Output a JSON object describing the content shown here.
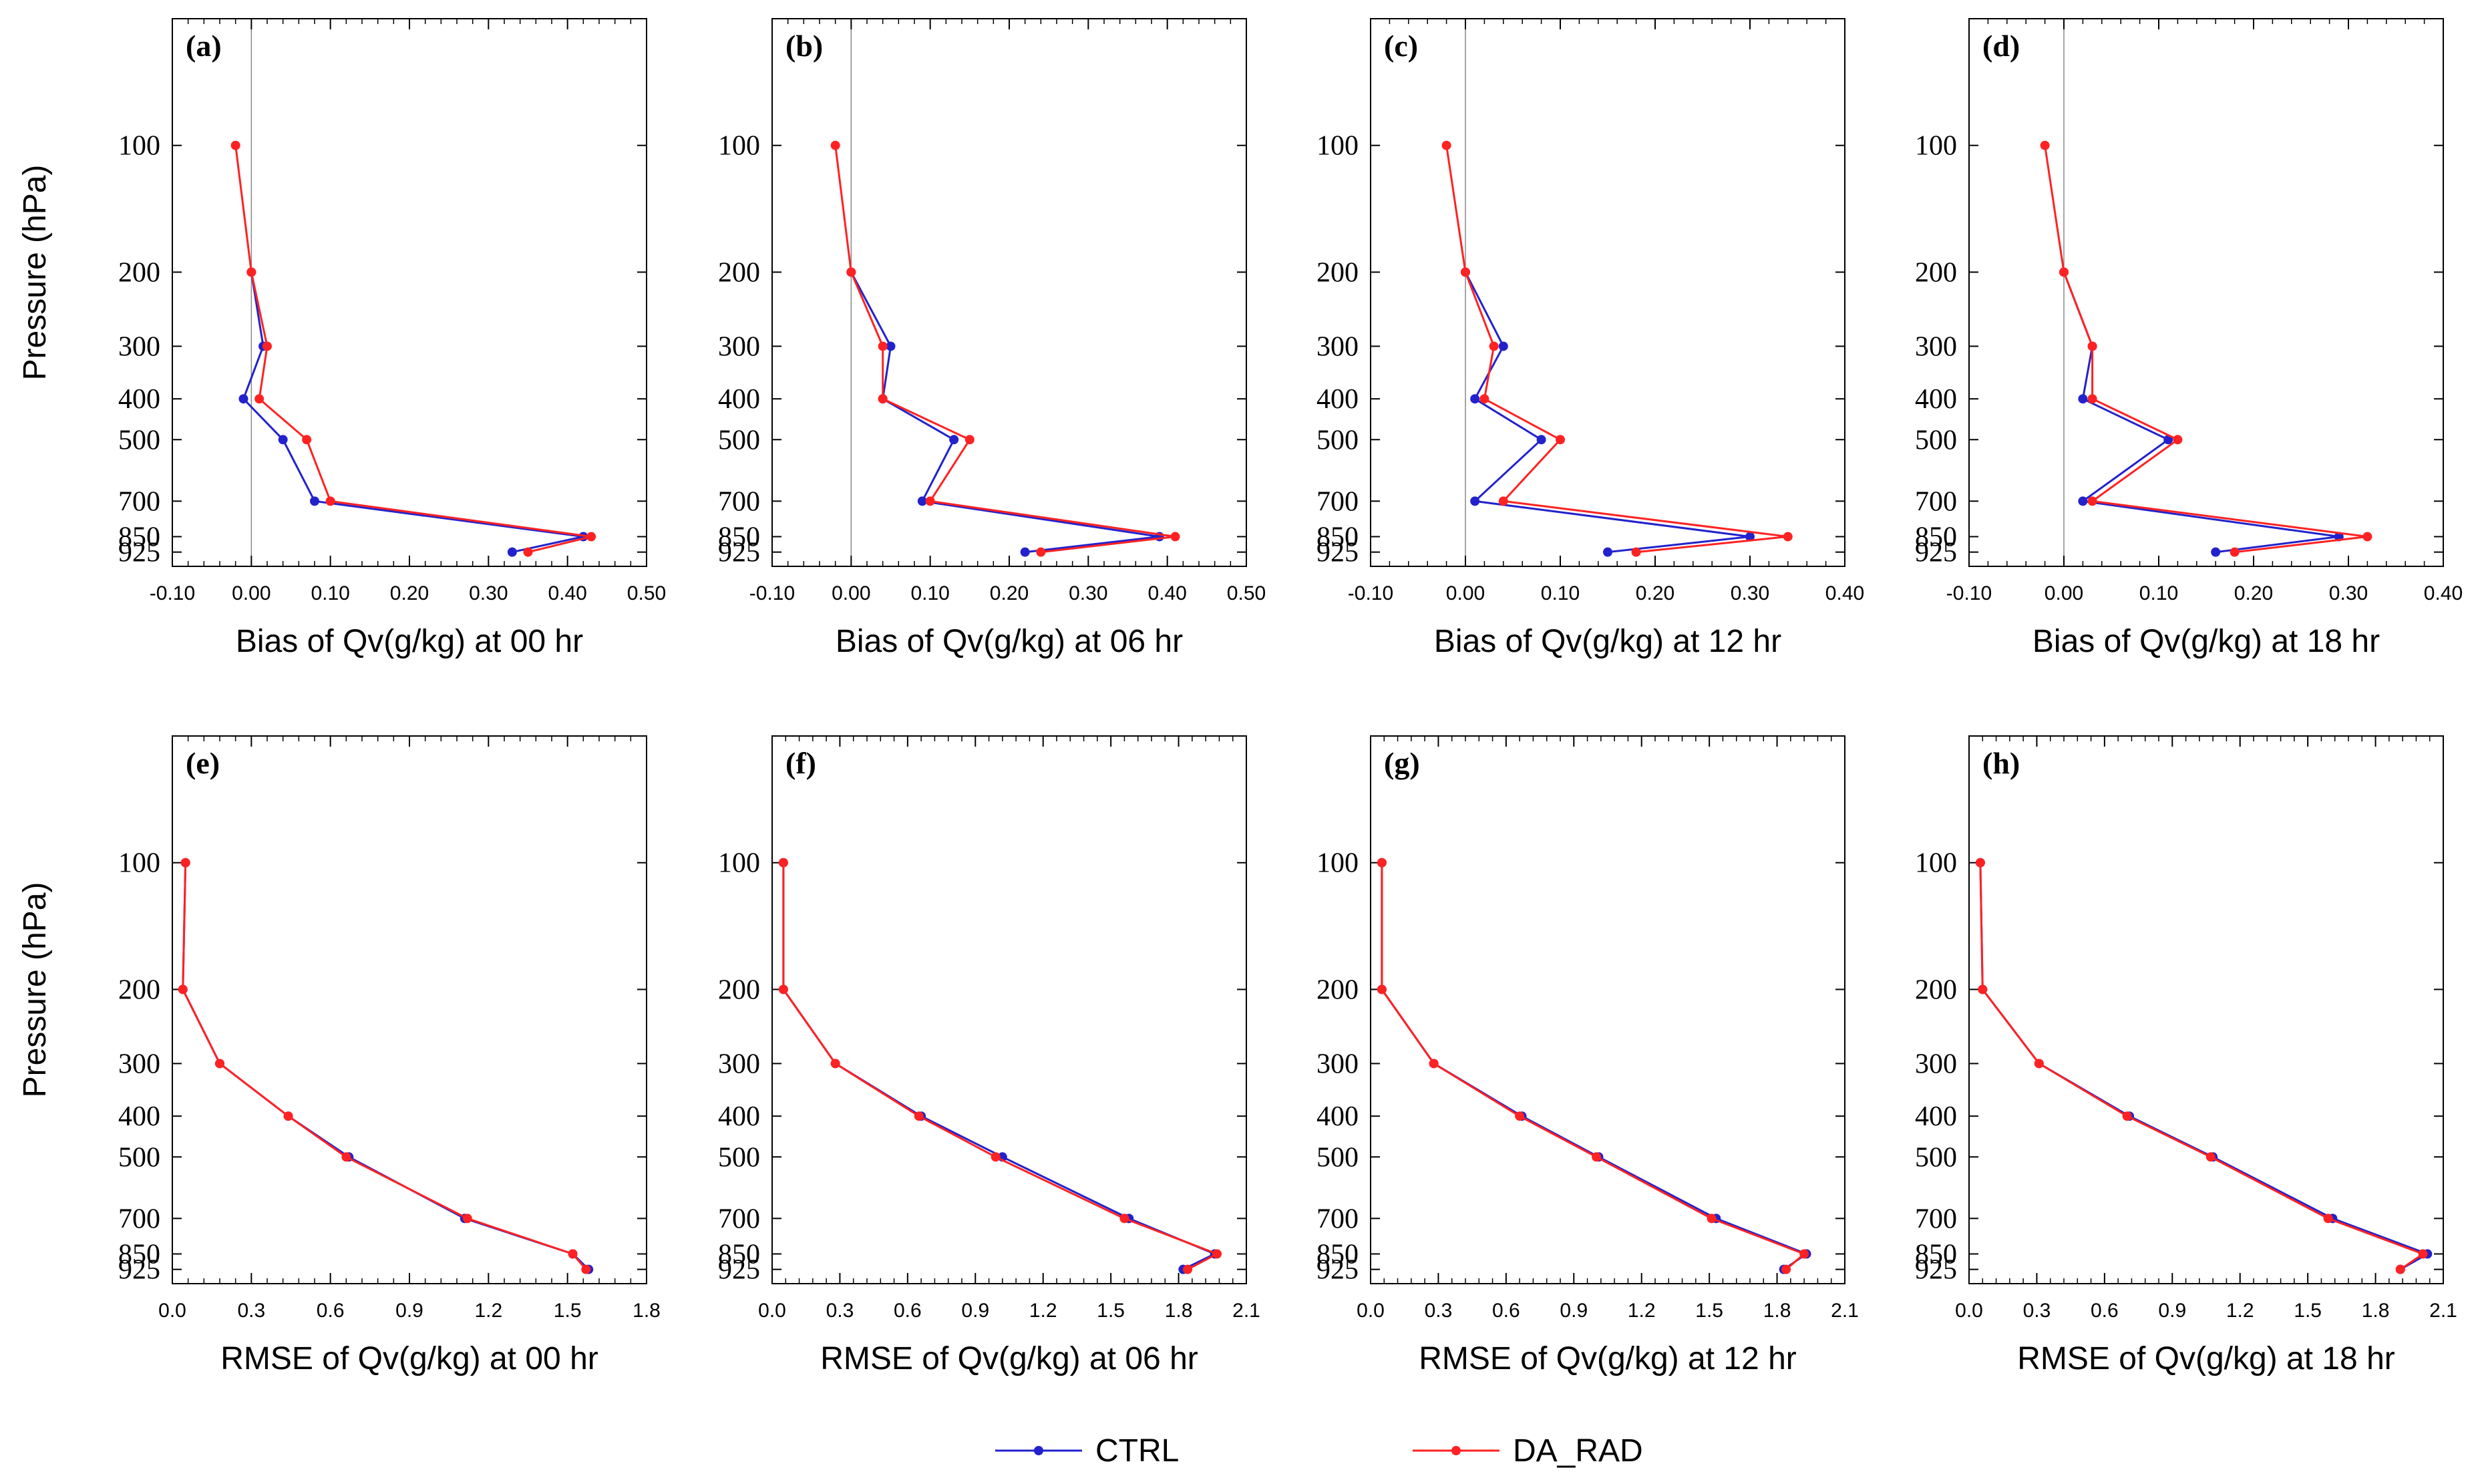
{
  "pressure_levels": [
    100,
    200,
    300,
    400,
    500,
    700,
    850,
    925
  ],
  "legend": [
    {
      "name": "CTRL",
      "color": "#2222cc"
    },
    {
      "name": "DA_RAD",
      "color": "#ff2222"
    }
  ],
  "chart_data": [
    {
      "type": "line",
      "panel_label": "(a)",
      "xlabel": "Bias of Qv(g/kg) at 00 hr",
      "ylabel": "Pressure (hPa)",
      "xlim": [
        -0.1,
        0.5
      ],
      "xticks": [
        -0.1,
        0,
        0.1,
        0.2,
        0.3,
        0.4,
        0.5
      ],
      "xtick_labels": [
        "-0.10",
        "0.00",
        "0.10",
        "0.20",
        "0.30",
        "0.40",
        "0.50"
      ],
      "series": [
        {
          "name": "CTRL",
          "values": [
            null,
            0.0,
            0.015,
            -0.01,
            0.04,
            0.08,
            0.42,
            0.33
          ]
        },
        {
          "name": "DA_RAD",
          "values": [
            -0.02,
            0.0,
            0.02,
            0.01,
            0.07,
            0.1,
            0.43,
            0.35
          ]
        }
      ]
    },
    {
      "type": "line",
      "panel_label": "(b)",
      "xlabel": "Bias of Qv(g/kg) at 06 hr",
      "ylabel": "",
      "xlim": [
        -0.1,
        0.5
      ],
      "xticks": [
        -0.1,
        0,
        0.1,
        0.2,
        0.3,
        0.4,
        0.5
      ],
      "xtick_labels": [
        "-0.10",
        "0.00",
        "0.10",
        "0.20",
        "0.30",
        "0.40",
        "0.50"
      ],
      "series": [
        {
          "name": "CTRL",
          "values": [
            null,
            0.0,
            0.05,
            0.04,
            0.13,
            0.09,
            0.39,
            0.22
          ]
        },
        {
          "name": "DA_RAD",
          "values": [
            -0.02,
            0.0,
            0.04,
            0.04,
            0.15,
            0.1,
            0.41,
            0.24
          ]
        }
      ]
    },
    {
      "type": "line",
      "panel_label": "(c)",
      "xlabel": "Bias of Qv(g/kg) at 12 hr",
      "ylabel": "",
      "xlim": [
        -0.1,
        0.4
      ],
      "xticks": [
        -0.1,
        0,
        0.1,
        0.2,
        0.3,
        0.4
      ],
      "xtick_labels": [
        "-0.10",
        "0.00",
        "0.10",
        "0.20",
        "0.30",
        "0.40"
      ],
      "series": [
        {
          "name": "CTRL",
          "values": [
            null,
            0.0,
            0.04,
            0.01,
            0.08,
            0.01,
            0.3,
            0.15
          ]
        },
        {
          "name": "DA_RAD",
          "values": [
            -0.02,
            0.0,
            0.03,
            0.02,
            0.1,
            0.04,
            0.34,
            0.18
          ]
        }
      ]
    },
    {
      "type": "line",
      "panel_label": "(d)",
      "xlabel": "Bias of Qv(g/kg) at 18 hr",
      "ylabel": "",
      "xlim": [
        -0.1,
        0.4
      ],
      "xticks": [
        -0.1,
        0,
        0.1,
        0.2,
        0.3,
        0.4
      ],
      "xtick_labels": [
        "-0.10",
        "0.00",
        "0.10",
        "0.20",
        "0.30",
        "0.40"
      ],
      "series": [
        {
          "name": "CTRL",
          "values": [
            null,
            0.0,
            0.03,
            0.02,
            0.11,
            0.02,
            0.29,
            0.16
          ]
        },
        {
          "name": "DA_RAD",
          "values": [
            -0.02,
            0.0,
            0.03,
            0.03,
            0.12,
            0.03,
            0.32,
            0.18
          ]
        }
      ]
    },
    {
      "type": "line",
      "panel_label": "(e)",
      "xlabel": "RMSE of Qv(g/kg) at 00 hr",
      "ylabel": "Pressure (hPa)",
      "xlim": [
        0,
        1.8
      ],
      "xticks": [
        0,
        0.3,
        0.6,
        0.9,
        1.2,
        1.5,
        1.8
      ],
      "xtick_labels": [
        "0.0",
        "0.3",
        "0.6",
        "0.9",
        "1.2",
        "1.5",
        "1.8"
      ],
      "series": [
        {
          "name": "CTRL",
          "values": [
            0.05,
            0.04,
            0.18,
            0.44,
            0.67,
            1.11,
            1.52,
            1.58
          ]
        },
        {
          "name": "DA_RAD",
          "values": [
            0.05,
            0.04,
            0.18,
            0.44,
            0.66,
            1.12,
            1.52,
            1.57
          ]
        }
      ]
    },
    {
      "type": "line",
      "panel_label": "(f)",
      "xlabel": "RMSE of Qv(g/kg) at 06 hr",
      "ylabel": "",
      "xlim": [
        0,
        2.1
      ],
      "xticks": [
        0,
        0.3,
        0.6,
        0.9,
        1.2,
        1.5,
        1.8,
        2.1
      ],
      "xtick_labels": [
        "0.0",
        "0.3",
        "0.6",
        "0.9",
        "1.2",
        "1.5",
        "1.8",
        "2.1"
      ],
      "series": [
        {
          "name": "CTRL",
          "values": [
            0.05,
            0.05,
            0.28,
            0.66,
            1.02,
            1.58,
            1.96,
            1.82
          ]
        },
        {
          "name": "DA_RAD",
          "values": [
            0.05,
            0.05,
            0.28,
            0.65,
            0.99,
            1.56,
            1.97,
            1.84
          ]
        }
      ]
    },
    {
      "type": "line",
      "panel_label": "(g)",
      "xlabel": "RMSE of Qv(g/kg) at 12 hr",
      "ylabel": "",
      "xlim": [
        0,
        2.1
      ],
      "xticks": [
        0,
        0.3,
        0.6,
        0.9,
        1.2,
        1.5,
        1.8,
        2.1
      ],
      "xtick_labels": [
        "0.0",
        "0.3",
        "0.6",
        "0.9",
        "1.2",
        "1.5",
        "1.8",
        "2.1"
      ],
      "series": [
        {
          "name": "CTRL",
          "values": [
            0.05,
            0.05,
            0.28,
            0.67,
            1.01,
            1.53,
            1.93,
            1.83
          ]
        },
        {
          "name": "DA_RAD",
          "values": [
            0.05,
            0.05,
            0.28,
            0.66,
            1.0,
            1.51,
            1.92,
            1.84
          ]
        }
      ]
    },
    {
      "type": "line",
      "panel_label": "(h)",
      "xlabel": "RMSE of Qv(g/kg) at 18 hr",
      "ylabel": "",
      "xlim": [
        0,
        2.1
      ],
      "xticks": [
        0,
        0.3,
        0.6,
        0.9,
        1.2,
        1.5,
        1.8,
        2.1
      ],
      "xtick_labels": [
        "0.0",
        "0.3",
        "0.6",
        "0.9",
        "1.2",
        "1.5",
        "1.8",
        "2.1"
      ],
      "series": [
        {
          "name": "CTRL",
          "values": [
            0.05,
            0.06,
            0.31,
            0.71,
            1.08,
            1.61,
            2.03,
            1.91
          ]
        },
        {
          "name": "DA_RAD",
          "values": [
            0.05,
            0.06,
            0.31,
            0.7,
            1.07,
            1.59,
            2.01,
            1.91
          ]
        }
      ]
    }
  ]
}
